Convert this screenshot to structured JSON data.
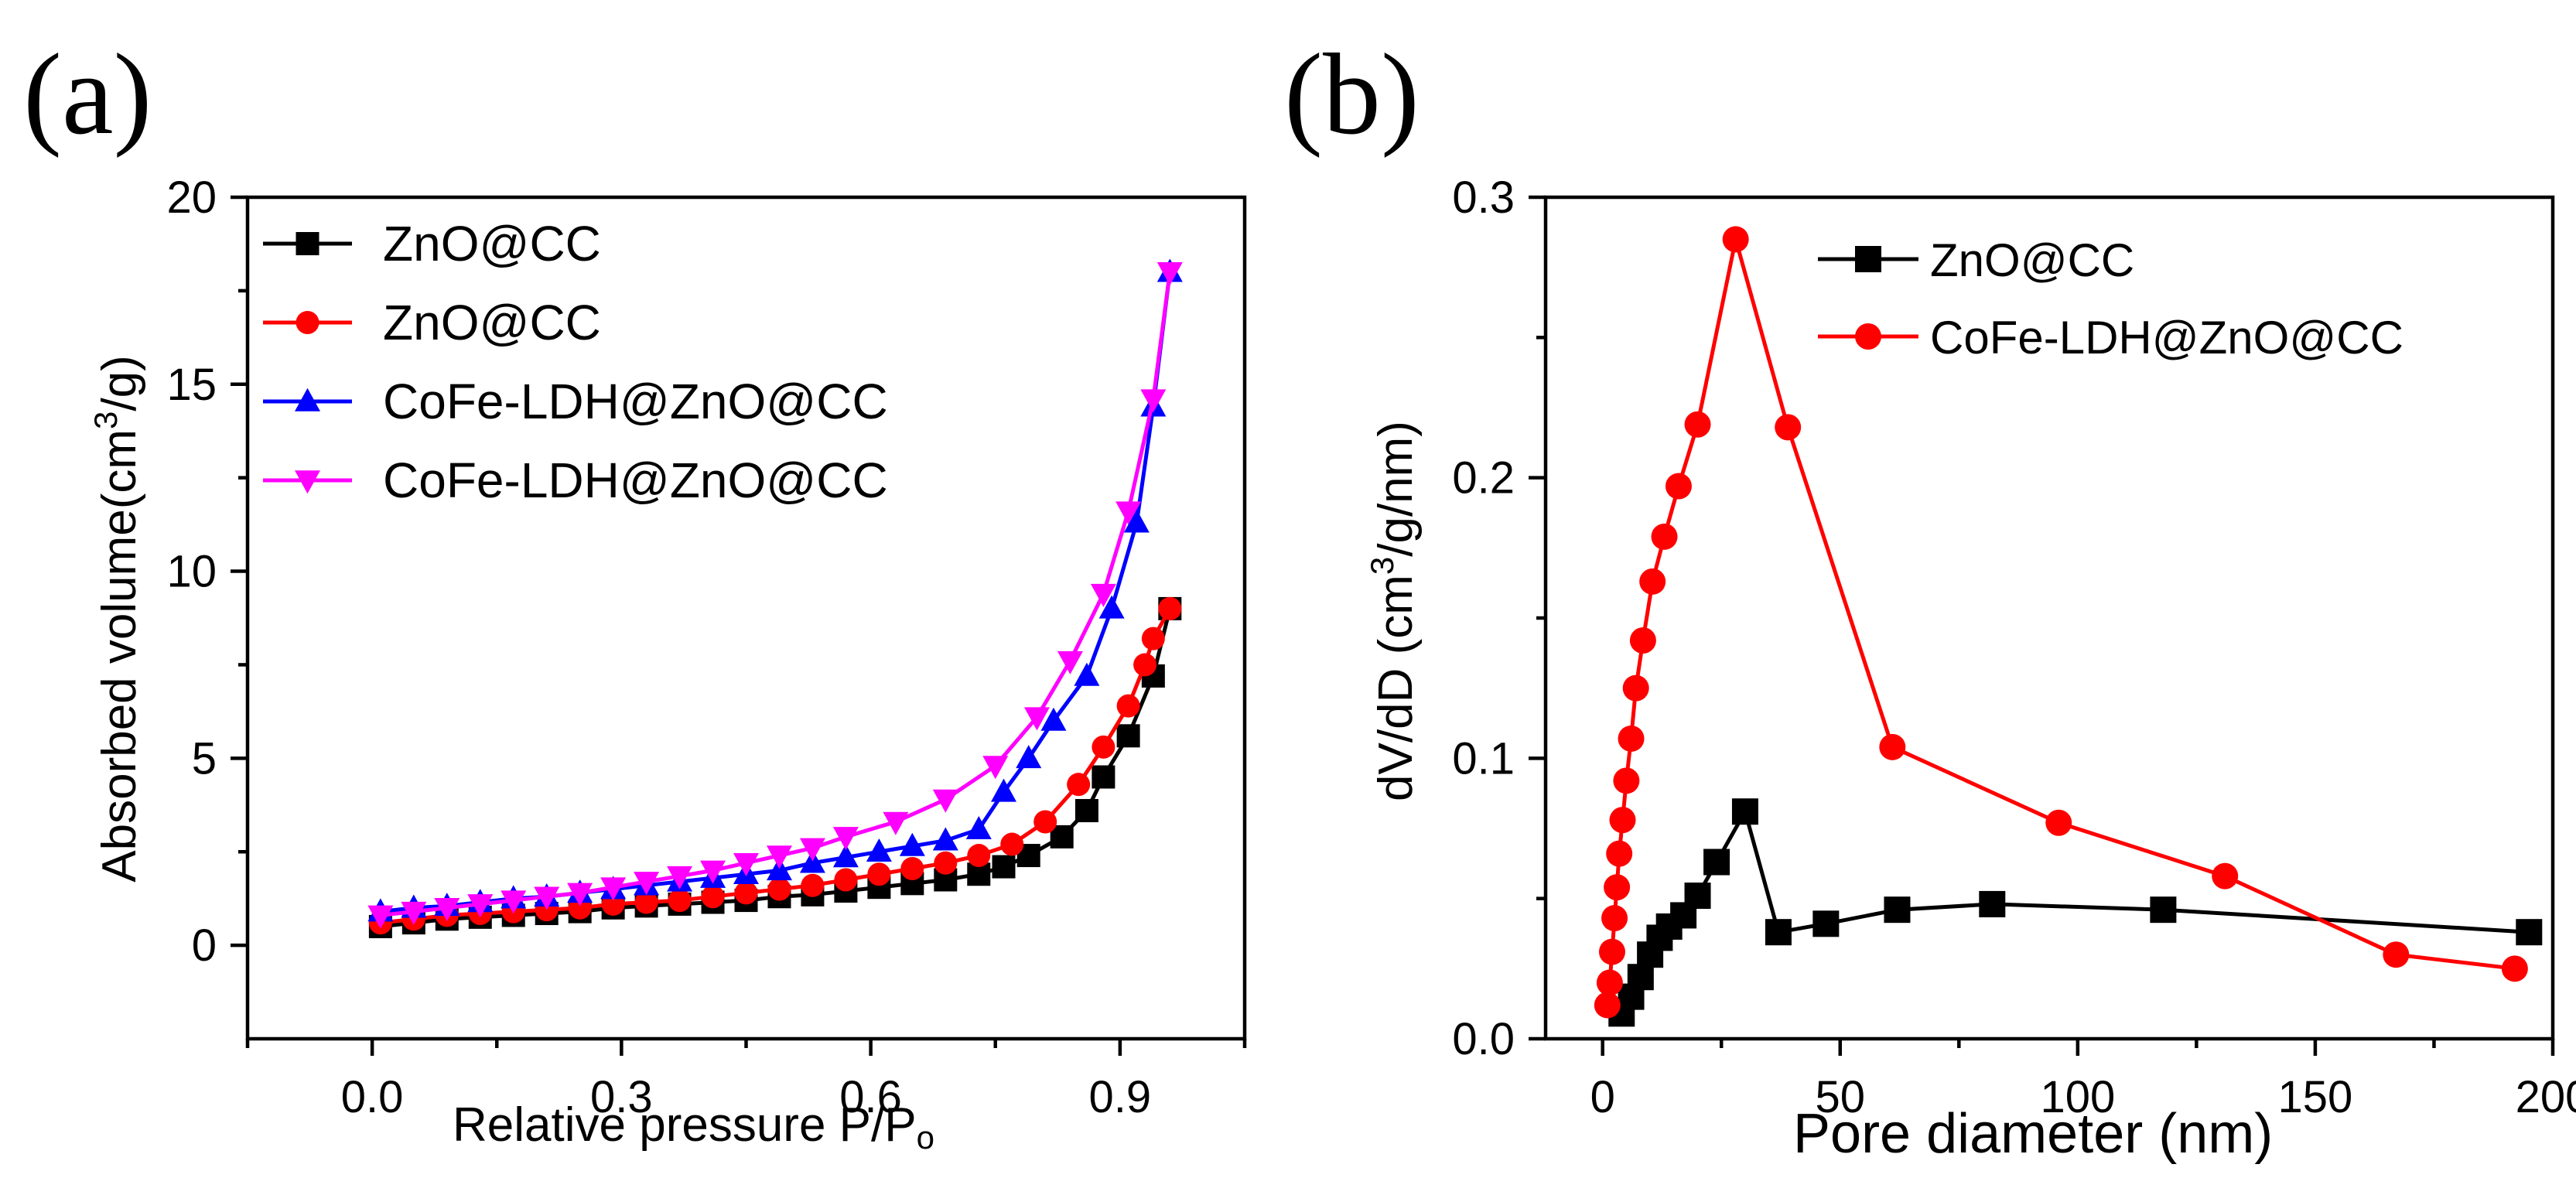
{
  "chart_data": [
    {
      "type": "line",
      "panel_label": "(a)",
      "title": "",
      "xlabel": "Relative pressure P/P",
      "xlabel_sub": "o",
      "ylabel_pre": "Absorbed volume(cm",
      "ylabel_sup": "3",
      "ylabel_post": "/g)",
      "xlim": [
        -0.15,
        1.05
      ],
      "ylim": [
        -2.5,
        20
      ],
      "xticks": [
        "0.0",
        "0.3",
        "0.6",
        "0.9"
      ],
      "xtick_values": [
        0.0,
        0.3,
        0.6,
        0.9
      ],
      "yticks": [
        "0",
        "5",
        "10",
        "15",
        "20"
      ],
      "ytick_values": [
        0,
        5,
        10,
        15,
        20
      ],
      "legend_position": "top-left",
      "series": [
        {
          "name": "ZnO@CC",
          "color": "#000000",
          "marker": "square",
          "x": [
            0.01,
            0.05,
            0.09,
            0.13,
            0.17,
            0.21,
            0.25,
            0.29,
            0.33,
            0.37,
            0.41,
            0.45,
            0.49,
            0.53,
            0.57,
            0.61,
            0.65,
            0.69,
            0.73,
            0.76,
            0.79,
            0.83,
            0.86,
            0.88,
            0.91,
            0.94,
            0.96
          ],
          "y": [
            0.5,
            0.6,
            0.7,
            0.75,
            0.8,
            0.85,
            0.9,
            1.0,
            1.05,
            1.1,
            1.15,
            1.2,
            1.3,
            1.35,
            1.45,
            1.55,
            1.65,
            1.75,
            1.9,
            2.1,
            2.4,
            2.9,
            3.6,
            4.5,
            5.6,
            7.2,
            9.0
          ]
        },
        {
          "name": "ZnO@CC",
          "color": "#ff0000",
          "marker": "circle",
          "x": [
            0.01,
            0.05,
            0.09,
            0.13,
            0.17,
            0.21,
            0.25,
            0.29,
            0.33,
            0.37,
            0.41,
            0.45,
            0.49,
            0.53,
            0.57,
            0.61,
            0.65,
            0.69,
            0.73,
            0.77,
            0.81,
            0.85,
            0.88,
            0.91,
            0.93,
            0.94,
            0.96
          ],
          "y": [
            0.6,
            0.7,
            0.8,
            0.85,
            0.9,
            0.95,
            1.0,
            1.1,
            1.15,
            1.2,
            1.3,
            1.4,
            1.5,
            1.6,
            1.75,
            1.9,
            2.05,
            2.2,
            2.4,
            2.7,
            3.3,
            4.3,
            5.3,
            6.4,
            7.5,
            8.2,
            9.0
          ]
        },
        {
          "name": "CoFe-LDH@ZnO@CC",
          "color": "#0000ff",
          "marker": "triangle-up",
          "x": [
            0.01,
            0.05,
            0.09,
            0.13,
            0.17,
            0.21,
            0.25,
            0.29,
            0.33,
            0.37,
            0.41,
            0.45,
            0.49,
            0.53,
            0.57,
            0.61,
            0.65,
            0.69,
            0.73,
            0.76,
            0.79,
            0.82,
            0.86,
            0.89,
            0.92,
            0.94,
            0.96
          ],
          "y": [
            0.9,
            1.0,
            1.05,
            1.15,
            1.25,
            1.3,
            1.4,
            1.5,
            1.6,
            1.7,
            1.8,
            1.9,
            2.0,
            2.2,
            2.35,
            2.5,
            2.65,
            2.8,
            3.1,
            4.1,
            5.0,
            6.0,
            7.2,
            9.0,
            11.3,
            14.4,
            18.0
          ]
        },
        {
          "name": "CoFe-LDH@ZnO@CC",
          "color": "#ff00ff",
          "marker": "triangle-down",
          "x": [
            0.01,
            0.05,
            0.09,
            0.13,
            0.17,
            0.21,
            0.25,
            0.29,
            0.33,
            0.37,
            0.41,
            0.45,
            0.49,
            0.53,
            0.57,
            0.63,
            0.69,
            0.75,
            0.8,
            0.84,
            0.88,
            0.91,
            0.94,
            0.96
          ],
          "y": [
            0.8,
            0.9,
            1.0,
            1.1,
            1.2,
            1.3,
            1.4,
            1.55,
            1.7,
            1.85,
            2.0,
            2.2,
            2.4,
            2.6,
            2.9,
            3.3,
            3.9,
            4.8,
            6.1,
            7.6,
            9.4,
            11.6,
            14.6,
            18.0
          ]
        }
      ]
    },
    {
      "type": "line",
      "panel_label": "(b)",
      "title": "",
      "xlabel": "Pore diameter (nm)",
      "ylabel_pre": "dV/dD (cm",
      "ylabel_sup": "3",
      "ylabel_post": "/g/nm)",
      "xlim": [
        -12,
        200
      ],
      "ylim": [
        0.0,
        0.3
      ],
      "xticks": [
        "0",
        "50",
        "100",
        "150",
        "200"
      ],
      "xtick_values": [
        0,
        50,
        100,
        150,
        200
      ],
      "yticks": [
        "0.0",
        "0.1",
        "0.2",
        "0.3"
      ],
      "ytick_values": [
        0.0,
        0.1,
        0.2,
        0.3
      ],
      "legend_position": "top-right",
      "series": [
        {
          "name": "ZnO@CC",
          "color": "#000000",
          "marker": "square",
          "x": [
            4,
            6,
            8,
            10,
            12,
            14,
            17,
            20,
            24,
            30,
            37,
            47,
            62,
            82,
            118,
            195
          ],
          "y": [
            0.009,
            0.015,
            0.022,
            0.03,
            0.036,
            0.04,
            0.044,
            0.051,
            0.063,
            0.081,
            0.038,
            0.041,
            0.046,
            0.048,
            0.046,
            0.038
          ]
        },
        {
          "name": "CoFe-LDH@ZnO@CC",
          "color": "#ff0000",
          "marker": "circle",
          "x": [
            1,
            1.5,
            2,
            2.5,
            3,
            3.5,
            4.2,
            5,
            6,
            7,
            8.5,
            10.5,
            13,
            16,
            20,
            28,
            39,
            61,
            96,
            131,
            167,
            192
          ],
          "y": [
            0.012,
            0.02,
            0.031,
            0.043,
            0.054,
            0.066,
            0.078,
            0.092,
            0.107,
            0.125,
            0.142,
            0.163,
            0.179,
            0.197,
            0.219,
            0.285,
            0.218,
            0.104,
            0.077,
            0.058,
            0.03,
            0.025
          ]
        }
      ]
    }
  ]
}
